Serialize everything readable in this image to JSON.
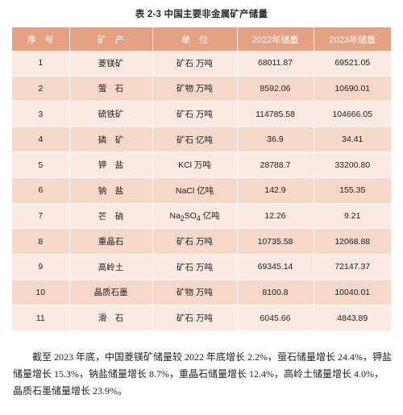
{
  "caption": "表 2-3   中国主要非金属矿产储量",
  "table": {
    "headers": [
      "序　号",
      "矿　产",
      "单　位",
      "2022年储量",
      "2023年储量"
    ],
    "rows": [
      {
        "no": "1",
        "mineral": "菱镁矿",
        "unit": "矿石 万吨",
        "y2022": "68011.87",
        "y2023": "69521.05"
      },
      {
        "no": "2",
        "mineral": "萤　石",
        "unit": "矿物 万吨",
        "y2022": "8592.06",
        "y2023": "10690.01"
      },
      {
        "no": "3",
        "mineral": "硫铁矿",
        "unit": "矿石 万吨",
        "y2022": "114785.58",
        "y2023": "104666.05"
      },
      {
        "no": "4",
        "mineral": "磷　矿",
        "unit": "矿石 亿吨",
        "y2022": "36.9",
        "y2023": "34.41"
      },
      {
        "no": "5",
        "mineral": "钾　盐",
        "unit": "KCl 万吨",
        "y2022": "28788.7",
        "y2023": "33200.80"
      },
      {
        "no": "6",
        "mineral": "钠　盐",
        "unit": "NaCl 亿吨",
        "y2022": "142.9",
        "y2023": "155.35"
      },
      {
        "no": "7",
        "mineral": "芒　硝",
        "unit_prefix": "Na",
        "unit_sub1": "2",
        "unit_mid": "SO",
        "unit_sub2": "4",
        "unit_suffix": " 亿吨",
        "y2022": "12.26",
        "y2023": "9.21"
      },
      {
        "no": "8",
        "mineral": "重晶石",
        "unit": "矿石 万吨",
        "y2022": "10735.58",
        "y2023": "12068.88"
      },
      {
        "no": "9",
        "mineral": "高岭土",
        "unit": "矿石 万吨",
        "y2022": "69345.14",
        "y2023": "72147.37"
      },
      {
        "no": "10",
        "mineral": "晶质石墨",
        "unit": "矿物 万吨",
        "y2022": "8100.8",
        "y2023": "10040.01"
      },
      {
        "no": "11",
        "mineral": "滑　石",
        "unit": "矿石 万吨",
        "y2022": "6045.66",
        "y2023": "4843.89"
      }
    ]
  },
  "paragraph": "截至 2023 年底，中国菱镁矿储量较 2022 年底增长 2.2%，萤石储量增长 24.4%，钾盐储量增长 15.3%，钠盐储量增长 8.7%，重晶石储量增长 12.4%，高岭土储量增长 4.0%，晶质石墨储量增长 23.9%。",
  "colors": {
    "header": "#e5a283",
    "row_light": "#fbeae2",
    "row_dark": "#f6d8c9"
  }
}
